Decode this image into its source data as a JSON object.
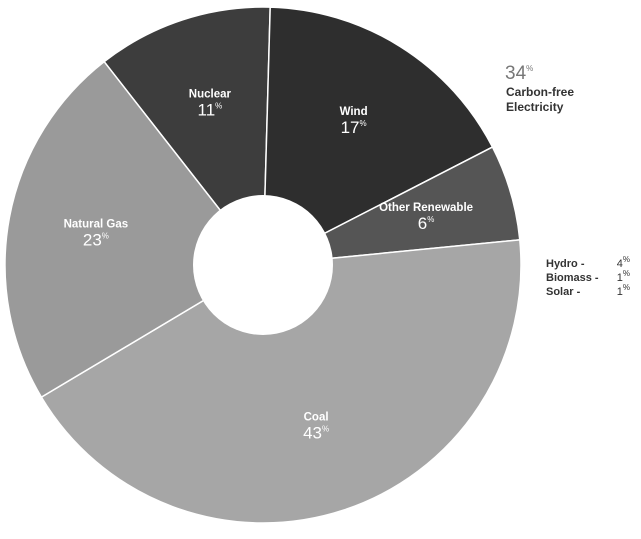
{
  "chart_data": {
    "type": "pie",
    "donut": true,
    "legend": "none",
    "labels": [
      "Nuclear",
      "Wind",
      "Other Renewable",
      "Coal",
      "Natural Gas"
    ],
    "values": [
      11,
      17,
      6,
      43,
      23
    ],
    "value_suffix": "%",
    "colors": [
      "#3d3d3d",
      "#2e2e2e",
      "#555555",
      "#a6a6a6",
      "#9a9a9a"
    ],
    "annotation": {
      "value": "34",
      "suffix": "%",
      "lines": [
        "Carbon-free",
        "Electricity"
      ]
    },
    "breakdown": [
      {
        "label": "Hydro -",
        "value": "4",
        "suffix": "%"
      },
      {
        "label": "Biomass -",
        "value": "1",
        "suffix": "%"
      },
      {
        "label": "Solar -",
        "value": "1",
        "suffix": "%"
      }
    ]
  }
}
